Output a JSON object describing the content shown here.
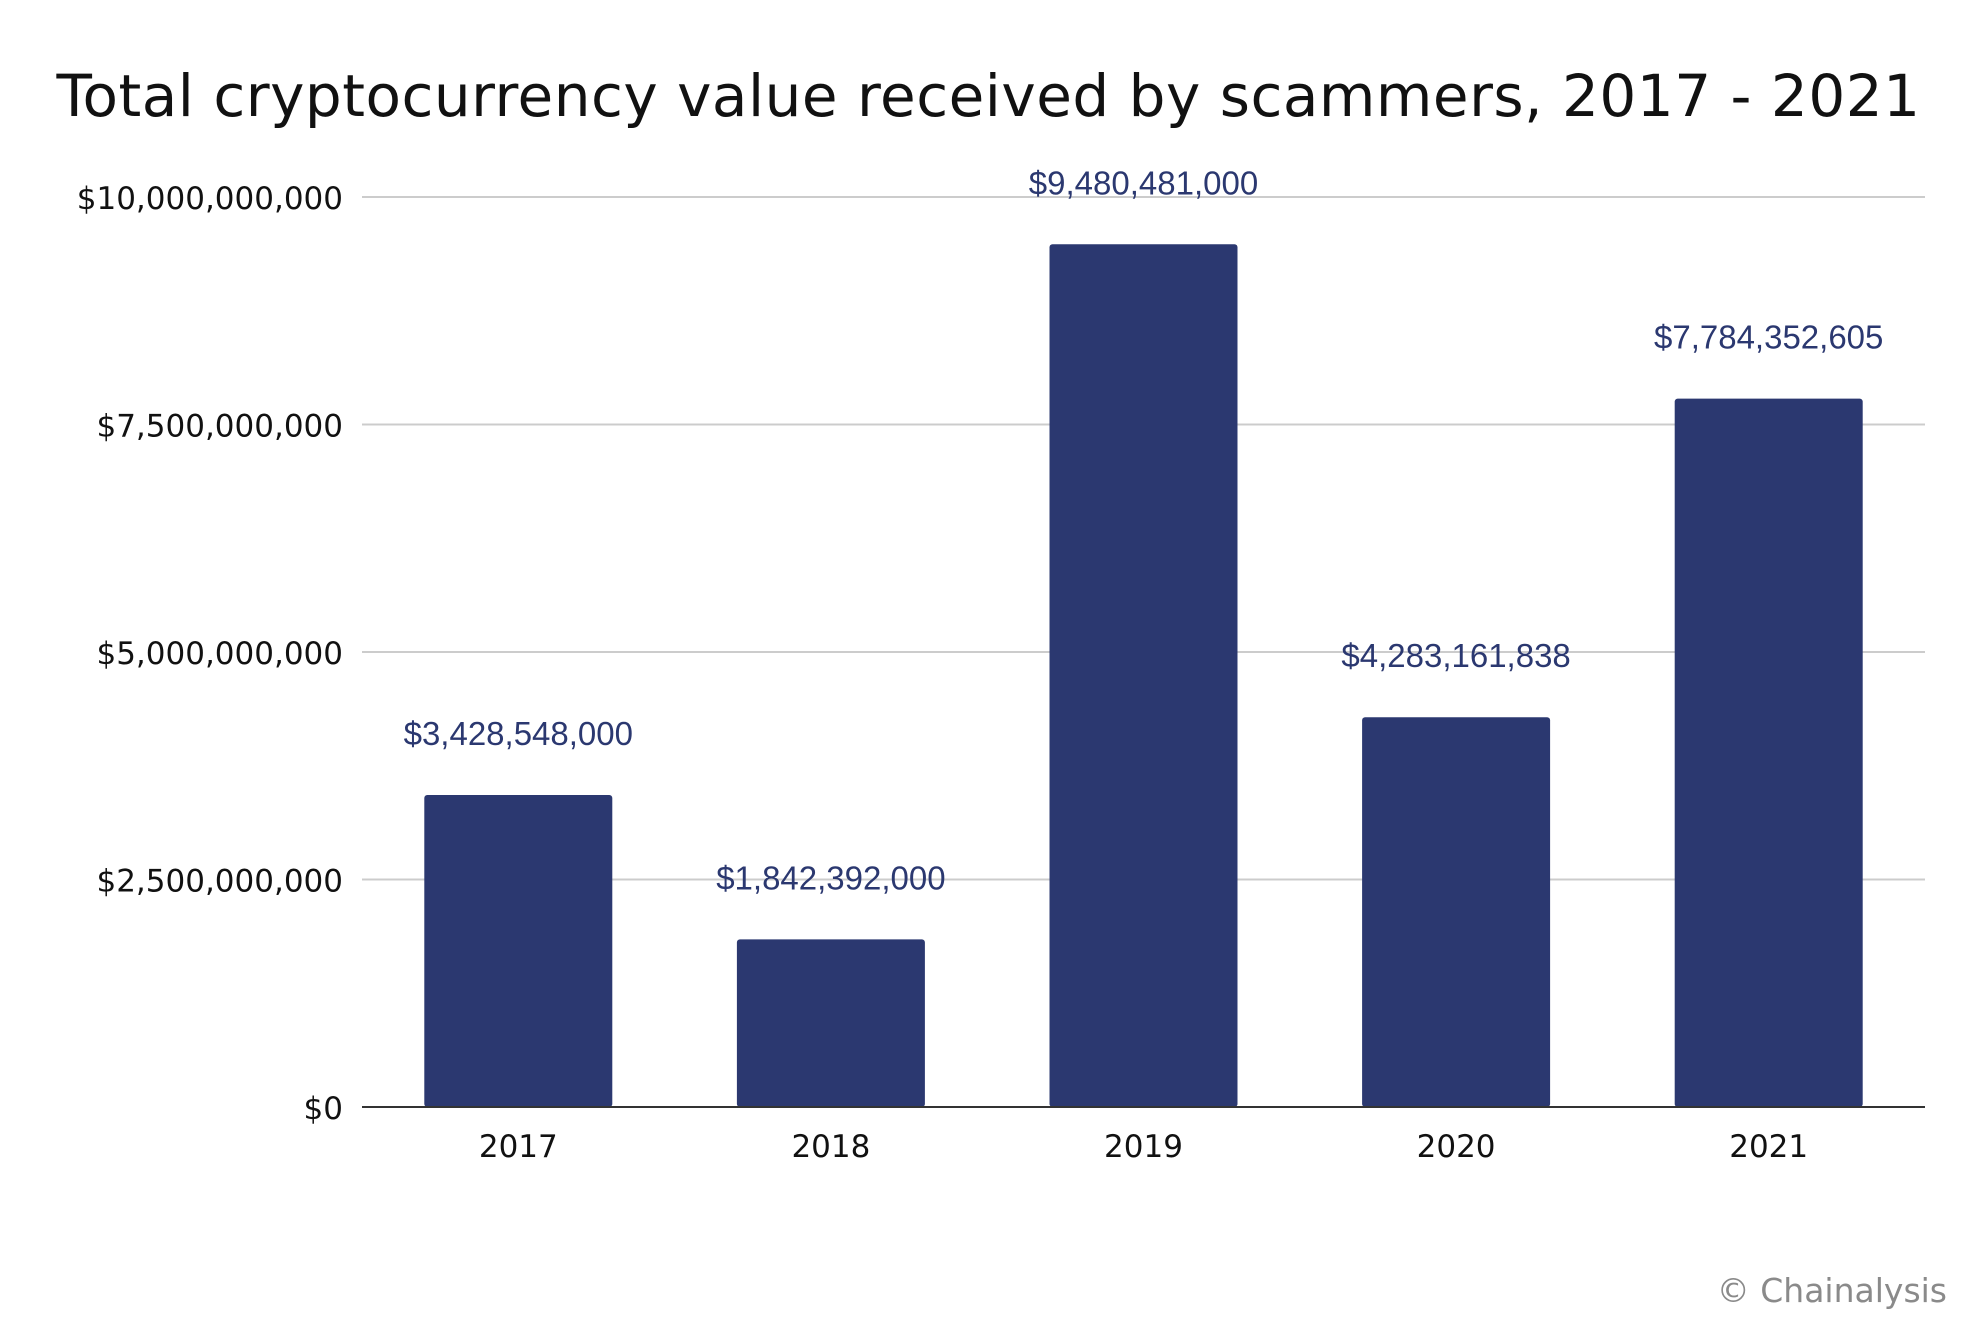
{
  "chart_data": {
    "type": "bar",
    "title": "Total cryptocurrency value received by scammers, 2017 - 2021",
    "categories": [
      "2017",
      "2018",
      "2019",
      "2020",
      "2021"
    ],
    "values": [
      3428548000,
      1842392000,
      9480481000,
      4283161838,
      7784352605
    ],
    "data_labels": [
      "$3,428,548,000",
      "$1,842,392,000",
      "$9,480,481,000",
      "$4,283,161,838",
      "$7,784,352,605"
    ],
    "y_ticks": [
      0,
      2500000000,
      5000000000,
      7500000000,
      10000000000
    ],
    "y_tick_labels": [
      "$0",
      "$2,500,000,000",
      "$5,000,000,000",
      "$7,500,000,000",
      "$10,000,000,000"
    ],
    "ylim": [
      0,
      10000000000
    ],
    "xlabel": "",
    "ylabel": "",
    "grid": true,
    "colors": {
      "bar": "#2b3870",
      "data_label": "#2b3870",
      "grid": "#cccccc",
      "axis": "#333333"
    }
  },
  "credit": "© Chainalysis"
}
